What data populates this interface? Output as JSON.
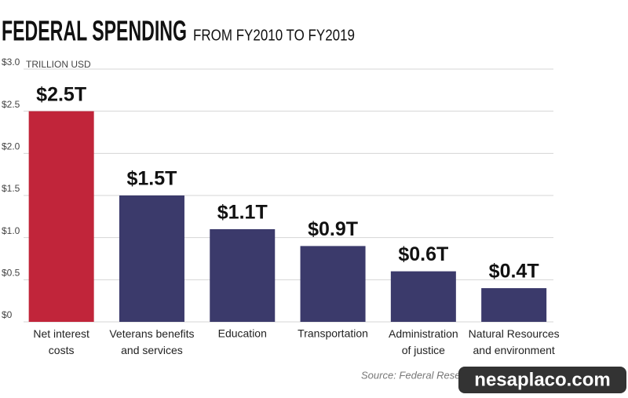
{
  "chart_data": {
    "type": "bar",
    "title": "FEDERAL SPENDING",
    "subtitle": "FROM FY2010 TO FY2019",
    "y_unit": "TRILLION USD",
    "categories": [
      "Net interest\ncosts",
      "Veterans benefits\nand services",
      "Education",
      "Transportation",
      "Administration\nof justice",
      "Natural Resources\nand environment"
    ],
    "values": [
      2.5,
      1.5,
      1.1,
      0.9,
      0.6,
      0.4
    ],
    "value_labels": [
      "$2.5T",
      "$1.5T",
      "$1.1T",
      "$0.9T",
      "$0.6T",
      "$0.4T"
    ],
    "colors": [
      "#c1253a",
      "#3b3a6b",
      "#3b3a6b",
      "#3b3a6b",
      "#3b3a6b",
      "#3b3a6b"
    ],
    "ylim": [
      0,
      3.0
    ],
    "yticks": [
      {
        "value": 0,
        "label": "$0"
      },
      {
        "value": 0.5,
        "label": "$0.5"
      },
      {
        "value": 1.0,
        "label": "$1.0"
      },
      {
        "value": 1.5,
        "label": "$1.5"
      },
      {
        "value": 2.0,
        "label": "$2.0"
      },
      {
        "value": 2.5,
        "label": "$2.5"
      },
      {
        "value": 3.0,
        "label": "$3.0"
      }
    ],
    "grid": true,
    "source": "Source: Federal Reserve, U.S. Treasury",
    "watermark": "nesaplaco.com"
  }
}
